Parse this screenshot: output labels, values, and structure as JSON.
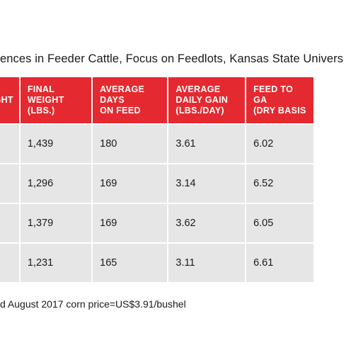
{
  "caption": "ences in Feeder Cattle, Focus on Feedlots, Kansas State Univers",
  "table": {
    "headers": [
      "GHT",
      "FINAL WEIGHT\n(LBS.)",
      "AVERAGE DAYS\nON FEED",
      "AVERAGE\nDAILY GAIN\n(LBS./DAY)",
      "FEED TO GA\n(DRY BASIS"
    ],
    "rows": [
      [
        "",
        "1,439",
        "180",
        "3.61",
        "6.02"
      ],
      [
        "",
        "1,296",
        "169",
        "3.14",
        "6.52"
      ],
      [
        "",
        "1,379",
        "169",
        "3.62",
        "6.05"
      ],
      [
        "",
        "1,231",
        "165",
        "3.11",
        "6.61"
      ]
    ]
  },
  "footnote": "d August 2017 corn price=US$3.91/bushel",
  "colors": {
    "header_bg": "#e42a30",
    "cell_bg": "#e6e6e7",
    "text": "#1a1a1a"
  }
}
